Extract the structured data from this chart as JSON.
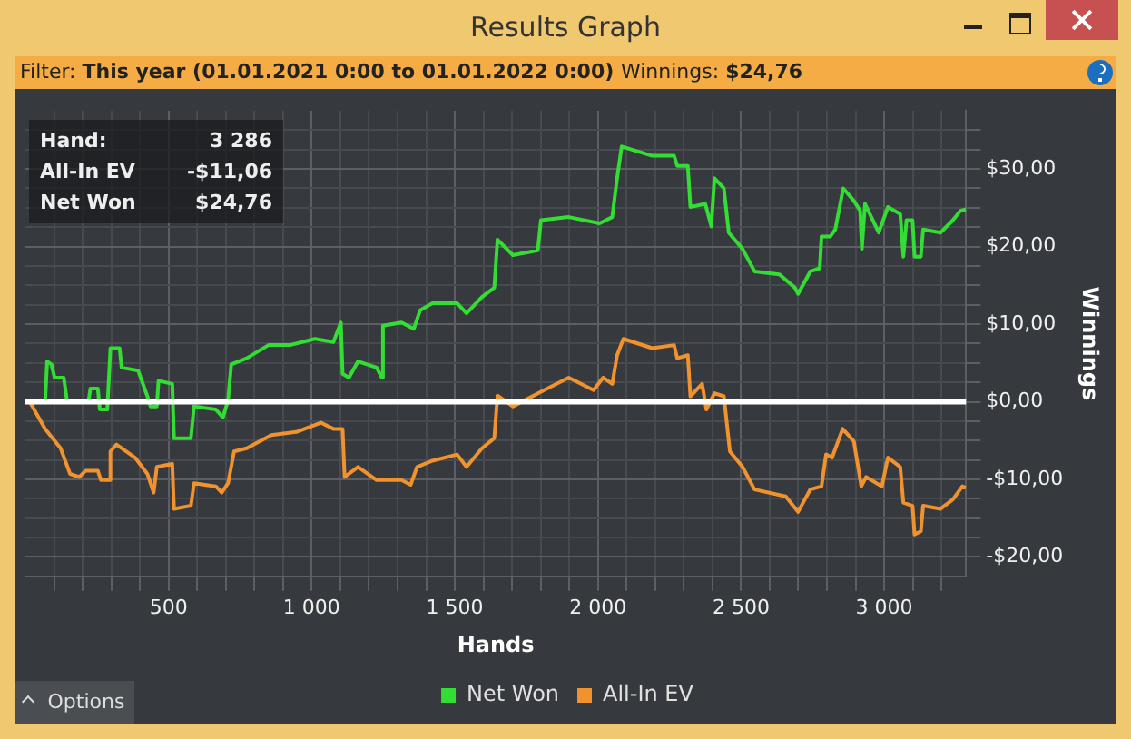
{
  "chart_data": {
    "type": "line",
    "title": "Results Graph",
    "xlabel": "Hands",
    "ylabel": "Winnings",
    "annotations": [
      "Filter:",
      "This year (01.01.2021 0:00 to 01.01.2022 0:00)",
      "Winnings:",
      "$24,76",
      "Hand:",
      "3 286",
      "All-In EV",
      "-$11,06",
      "Net Won",
      "$24,76",
      "Options"
    ],
    "xlim": [
      0,
      3286
    ],
    "ylim": [
      -22.5,
      37.5
    ],
    "xticks": [
      {
        "value": 100,
        "label": null
      },
      {
        "value": 200,
        "label": null
      },
      {
        "value": 300,
        "label": null
      },
      {
        "value": 400,
        "label": null
      },
      500,
      {
        "value": 600,
        "label": null
      },
      {
        "value": 700,
        "label": null
      },
      {
        "value": 800,
        "label": null
      },
      {
        "value": 900,
        "label": null
      },
      {
        "value": 1000,
        "label": "1 000"
      },
      {
        "value": 1100,
        "label": null
      },
      {
        "value": 1200,
        "label": null
      },
      {
        "value": 1300,
        "label": null
      },
      {
        "value": 1400,
        "label": null
      },
      {
        "value": 1500,
        "label": "1 500"
      },
      {
        "value": 1600,
        "label": null
      },
      {
        "value": 1700,
        "label": null
      },
      {
        "value": 1800,
        "label": null
      },
      {
        "value": 1900,
        "label": null
      },
      {
        "value": 2000,
        "label": "2 000"
      },
      {
        "value": 2100,
        "label": null
      },
      {
        "value": 2200,
        "label": null
      },
      {
        "value": 2300,
        "label": null
      },
      {
        "value": 2400,
        "label": null
      },
      {
        "value": 2500,
        "label": "2 500"
      },
      {
        "value": 2600,
        "label": null
      },
      {
        "value": 2700,
        "label": null
      },
      {
        "value": 2800,
        "label": null
      },
      {
        "value": 2900,
        "label": null
      },
      {
        "value": 3000,
        "label": "3 000"
      },
      {
        "value": 3100,
        "label": null
      },
      {
        "value": 3200,
        "label": null
      }
    ],
    "yticks": [
      {
        "value": -20,
        "label": "-$20,00"
      },
      {
        "value": -17.5,
        "label": null
      },
      {
        "value": -15,
        "label": null
      },
      {
        "value": -12.5,
        "label": null
      },
      {
        "value": -10,
        "label": "-$10,00"
      },
      {
        "value": -7.5,
        "label": null
      },
      {
        "value": -5,
        "label": null
      },
      {
        "value": -2.5,
        "label": null
      },
      {
        "value": 0,
        "label": "$0,00"
      },
      {
        "value": 2.5,
        "label": null
      },
      {
        "value": 5,
        "label": null
      },
      {
        "value": 7.5,
        "label": null
      },
      {
        "value": 10,
        "label": "$10,00"
      },
      {
        "value": 12.5,
        "label": null
      },
      {
        "value": 15,
        "label": null
      },
      {
        "value": 17.5,
        "label": null
      },
      {
        "value": 20,
        "label": "$20,00"
      },
      {
        "value": 22.5,
        "label": null
      },
      {
        "value": 25,
        "label": null
      },
      {
        "value": 27.5,
        "label": null
      },
      {
        "value": 30,
        "label": "$30,00"
      },
      {
        "value": 32.5,
        "label": null
      },
      {
        "value": 35,
        "label": null
      }
    ],
    "grid": true,
    "legend": "bottom",
    "marker": "none",
    "line_style": "solid",
    "ref_lines": [
      {
        "axis": "y",
        "value": 0,
        "color": "#ffffff"
      }
    ],
    "series": [
      {
        "name": "Net Won",
        "color": "#33dd33",
        "x": [
          15,
          69,
          76,
          91,
          102,
          134,
          145,
          160,
          221,
          227,
          253,
          260,
          286,
          297,
          329,
          336,
          394,
          426,
          437,
          459,
          465,
          513,
          519,
          578,
          589,
          665,
          690,
          708,
          719,
          773,
          849,
          924,
          1011,
          1076,
          1102,
          1108,
          1130,
          1162,
          1227,
          1245,
          1249,
          1314,
          1357,
          1379,
          1422,
          1508,
          1541,
          1595,
          1638,
          1649,
          1703,
          1790,
          1801,
          1898,
          2006,
          2050,
          2067,
          2083,
          2190,
          2266,
          2277,
          2314,
          2323,
          2375,
          2396,
          2407,
          2440,
          2457,
          2505,
          2547,
          2634,
          2688,
          2699,
          2742,
          2775,
          2781,
          2812,
          2829,
          2857,
          2894,
          2916,
          2922,
          2933,
          2981,
          3013,
          3056,
          3067,
          3078,
          3099,
          3106,
          3128,
          3136,
          3197,
          3240,
          3266,
          3286
        ],
        "values": [
          0,
          0,
          5.2,
          4.8,
          3.1,
          3.1,
          0.2,
          0,
          0.2,
          1.7,
          1.7,
          -1,
          -1,
          6.9,
          6.9,
          4.4,
          4,
          0.7,
          -0.6,
          -0.6,
          2.7,
          2.3,
          -4.7,
          -4.7,
          -0.6,
          -1,
          -2,
          0.2,
          4.8,
          5.6,
          7.3,
          7.3,
          8.1,
          7.7,
          10.2,
          3.6,
          3.1,
          5.2,
          4.4,
          3.1,
          9.8,
          10.2,
          9.4,
          11.8,
          12.7,
          12.7,
          11.4,
          13.5,
          14.7,
          20.9,
          18.9,
          19.5,
          23.4,
          23.8,
          23,
          23.8,
          28.8,
          32.9,
          31.7,
          31.7,
          30.4,
          30.4,
          25.1,
          25.5,
          22.6,
          28.8,
          27.5,
          21.8,
          19.7,
          16.8,
          16.4,
          14.7,
          13.9,
          16.8,
          17.2,
          21.3,
          21.3,
          22.2,
          27.5,
          25.9,
          24.6,
          19.7,
          25.5,
          21.8,
          25.1,
          24.2,
          18.7,
          23.4,
          23.4,
          18.7,
          18.7,
          22.2,
          21.8,
          23.4,
          24.6,
          24.8
        ]
      },
      {
        "name": "All-In EV",
        "color": "#f0922e",
        "x": [
          15,
          69,
          123,
          156,
          188,
          210,
          253,
          264,
          292,
          297,
          318,
          383,
          426,
          448,
          459,
          513,
          519,
          578,
          589,
          665,
          686,
          708,
          729,
          773,
          859,
          946,
          1032,
          1076,
          1108,
          1115,
          1162,
          1227,
          1314,
          1346,
          1368,
          1422,
          1508,
          1541,
          1595,
          1638,
          1649,
          1703,
          1812,
          1898,
          1985,
          2018,
          2050,
          2067,
          2089,
          2190,
          2266,
          2277,
          2314,
          2323,
          2364,
          2379,
          2407,
          2440,
          2461,
          2505,
          2547,
          2656,
          2699,
          2742,
          2781,
          2797,
          2818,
          2855,
          2894,
          2920,
          2937,
          2992,
          3013,
          3056,
          3067,
          3099,
          3106,
          3128,
          3136,
          3197,
          3240,
          3273,
          3286
        ],
        "values": [
          0,
          -3.5,
          -6,
          -9.3,
          -9.7,
          -8.9,
          -8.9,
          -10.1,
          -10.1,
          -6.4,
          -5.5,
          -7.2,
          -9.3,
          -11.7,
          -8.4,
          -8,
          -13.8,
          -13.4,
          -10.5,
          -10.9,
          -11.7,
          -10.5,
          -6.4,
          -6,
          -4.3,
          -3.9,
          -2.7,
          -3.5,
          -3.5,
          -9.7,
          -8.4,
          -10.1,
          -10.1,
          -10.7,
          -8.4,
          -7.6,
          -6.8,
          -8.4,
          -6,
          -4.7,
          0.8,
          -0.6,
          1.5,
          3.1,
          1.5,
          3.1,
          2.3,
          6,
          8.1,
          6.9,
          7.3,
          5.6,
          6,
          0.7,
          2.3,
          -1,
          1.1,
          0.7,
          -6.4,
          -8.4,
          -11.3,
          -12.2,
          -14.2,
          -11.3,
          -10.9,
          -6.8,
          -7.2,
          -3.5,
          -5.1,
          -10.9,
          -9.7,
          -10.9,
          -7.2,
          -8.4,
          -13,
          -13.4,
          -17.1,
          -16.7,
          -13.4,
          -13.8,
          -12.6,
          -10.9,
          -11.1
        ]
      }
    ]
  }
}
